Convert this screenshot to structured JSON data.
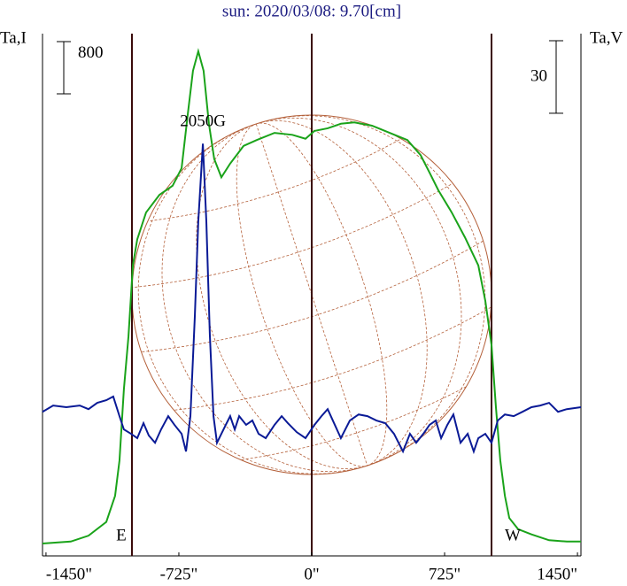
{
  "chart_data": {
    "type": "line",
    "title": "sun: 2020/03/08: 9.70[cm]",
    "y_label": "Ta,I",
    "y2_label": "Ta,V",
    "annotations": [
      {
        "text": "2050G",
        "x": -594,
        "y": 170.5,
        "axis": "y2"
      },
      {
        "text": "E",
        "x": -981
      },
      {
        "text": "W",
        "x": 981
      }
    ],
    "vlines": [
      -981,
      0,
      981
    ],
    "scale_bars": [
      {
        "value": 800,
        "axis": "y"
      },
      {
        "value": 30,
        "axis": "y2"
      }
    ],
    "xlim": [
      -1469,
      1469
    ],
    "xticks": [
      {
        "value": -1450,
        "label": "-1450\""
      },
      {
        "value": -725,
        "label": "-725\""
      },
      {
        "value": 0,
        "label": "0\""
      },
      {
        "value": 725,
        "label": "725\""
      },
      {
        "value": 1450,
        "label": "1450\""
      }
    ],
    "ylim": [
      0,
      8000
    ],
    "y2lim": [
      0,
      216
    ],
    "series": [
      {
        "name": "Ta,I",
        "color": "#1aa31a",
        "axis": "y",
        "x": [
          -1469,
          -1315,
          -1218,
          -1121,
          -1073,
          -1049,
          -1025,
          -1000,
          -976,
          -952,
          -904,
          -831,
          -759,
          -710,
          -677,
          -648,
          -619,
          -590,
          -561,
          -532,
          -493,
          -445,
          -372,
          -300,
          -203,
          -106,
          -34,
          15,
          87,
          159,
          232,
          329,
          425,
          522,
          594,
          643,
          691,
          764,
          836,
          909,
          947,
          981,
          1005,
          1029,
          1054,
          1078,
          1126,
          1199,
          1295,
          1392,
          1469
        ],
        "values": [
          190,
          220,
          310,
          520,
          920,
          1460,
          2550,
          3360,
          4450,
          4850,
          5260,
          5530,
          5670,
          5940,
          6750,
          7430,
          7730,
          7430,
          6620,
          6080,
          5800,
          6010,
          6280,
          6370,
          6480,
          6450,
          6390,
          6510,
          6550,
          6620,
          6640,
          6590,
          6480,
          6370,
          6140,
          5870,
          5600,
          5260,
          4880,
          4450,
          3910,
          3230,
          2280,
          1460,
          920,
          580,
          410,
          330,
          240,
          220,
          220
        ]
      },
      {
        "name": "Ta,V",
        "color": "#0a1a96",
        "axis": "y2",
        "x": [
          -1469,
          -1411,
          -1339,
          -1266,
          -1218,
          -1170,
          -1121,
          -1083,
          -1049,
          -1025,
          -986,
          -952,
          -918,
          -889,
          -855,
          -822,
          -783,
          -749,
          -710,
          -686,
          -662,
          -638,
          -619,
          -594,
          -575,
          -556,
          -536,
          -517,
          -493,
          -469,
          -445,
          -420,
          -396,
          -358,
          -324,
          -290,
          -251,
          -203,
          -164,
          -130,
          -82,
          -34,
          15,
          53,
          87,
          126,
          159,
          208,
          256,
          304,
          353,
          401,
          449,
          498,
          536,
          570,
          609,
          643,
          677,
          706,
          740,
          773,
          812,
          851,
          884,
          909,
          947,
          981,
          1015,
          1054,
          1102,
          1150,
          1199,
          1247,
          1295,
          1344,
          1392,
          1469
        ],
        "values": [
          59.6,
          62.2,
          61.5,
          62.2,
          60.7,
          63.3,
          64.4,
          65.9,
          57.8,
          52.3,
          50.5,
          48.7,
          54.9,
          49.8,
          46.8,
          52.3,
          57.8,
          54.2,
          50.5,
          43.2,
          57.8,
          98.8,
          138.3,
          170.5,
          138.3,
          91.5,
          57.8,
          46.8,
          50.5,
          54.2,
          57.8,
          52.3,
          57.8,
          54.2,
          56.0,
          50.5,
          48.7,
          54.2,
          57.8,
          54.9,
          51.2,
          48.7,
          54.2,
          57.8,
          60.7,
          54.2,
          48.7,
          56.0,
          58.5,
          57.8,
          56.0,
          54.9,
          50.5,
          43.2,
          50.5,
          46.8,
          50.5,
          54.2,
          56.0,
          48.7,
          54.2,
          58.5,
          46.8,
          50.5,
          43.2,
          48.7,
          50.5,
          46.8,
          56.0,
          58.5,
          57.8,
          59.6,
          61.5,
          62.2,
          63.3,
          59.6,
          60.7,
          61.5
        ]
      }
    ]
  }
}
